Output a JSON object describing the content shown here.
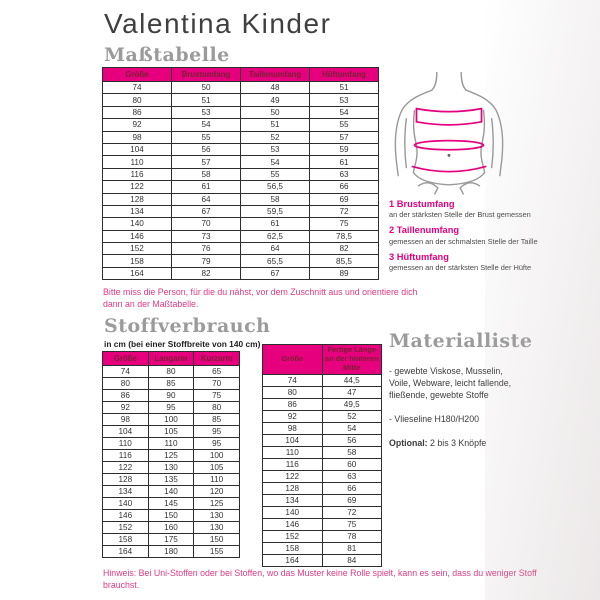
{
  "page": {
    "title": "Valentina Kinder",
    "accent_color": "#e6007e",
    "header_text_color": "#7b2034"
  },
  "mass_table": {
    "heading": "Maßtabelle",
    "columns": [
      "Größe",
      "Brustumfang",
      "Taillenumfang",
      "Hüftumfang"
    ],
    "rows": [
      [
        "74",
        "50",
        "48",
        "51"
      ],
      [
        "80",
        "51",
        "49",
        "53"
      ],
      [
        "86",
        "53",
        "50",
        "54"
      ],
      [
        "92",
        "54",
        "51",
        "55"
      ],
      [
        "98",
        "55",
        "52",
        "57"
      ],
      [
        "104",
        "56",
        "53",
        "59"
      ],
      [
        "110",
        "57",
        "54",
        "61"
      ],
      [
        "116",
        "58",
        "55",
        "63"
      ],
      [
        "122",
        "61",
        "56,5",
        "66"
      ],
      [
        "128",
        "64",
        "58",
        "69"
      ],
      [
        "134",
        "67",
        "59,5",
        "72"
      ],
      [
        "140",
        "70",
        "61",
        "75"
      ],
      [
        "146",
        "73",
        "62,5",
        "78,5"
      ],
      [
        "152",
        "76",
        "64",
        "82"
      ],
      [
        "158",
        "79",
        "65,5",
        "85,5"
      ],
      [
        "164",
        "82",
        "67",
        "89"
      ]
    ],
    "note": "Bitte miss die Person, für die du nähst, vor dem Zuschnitt aus und orientiere dich dann an der Maßtabelle."
  },
  "figure": {
    "name": "Körper-Messpunkte Illustration",
    "legend": [
      {
        "label": "1 Brustumfang",
        "desc": "an der stärksten Stelle der Brust gemessen"
      },
      {
        "label": "2 Taillenumfang",
        "desc": "gemessen an der schmalsten Stelle der Taille"
      },
      {
        "label": "3 Hüftumfang",
        "desc": "gemessen an der stärksten Stelle der Hüfte"
      }
    ]
  },
  "stoffverbrauch": {
    "heading": "Stoffverbrauch",
    "subtitle": "in cm (bei einer Stoffbreite von 140 cm)",
    "columns": [
      "Größe",
      "Langarm",
      "Kurzarm"
    ],
    "rows": [
      [
        "74",
        "80",
        "65"
      ],
      [
        "80",
        "85",
        "70"
      ],
      [
        "86",
        "90",
        "75"
      ],
      [
        "92",
        "95",
        "80"
      ],
      [
        "98",
        "100",
        "85"
      ],
      [
        "104",
        "105",
        "95"
      ],
      [
        "110",
        "110",
        "95"
      ],
      [
        "116",
        "125",
        "100"
      ],
      [
        "122",
        "130",
        "105"
      ],
      [
        "128",
        "135",
        "110"
      ],
      [
        "134",
        "140",
        "120"
      ],
      [
        "140",
        "145",
        "125"
      ],
      [
        "146",
        "150",
        "130"
      ],
      [
        "152",
        "160",
        "130"
      ],
      [
        "158",
        "175",
        "150"
      ],
      [
        "164",
        "180",
        "155"
      ]
    ]
  },
  "length_table": {
    "columns": [
      "Größe",
      "Fertige Länge an der hinteren Mitte"
    ],
    "rows": [
      [
        "74",
        "44,5"
      ],
      [
        "80",
        "47"
      ],
      [
        "86",
        "49,5"
      ],
      [
        "92",
        "52"
      ],
      [
        "98",
        "54"
      ],
      [
        "104",
        "56"
      ],
      [
        "110",
        "58"
      ],
      [
        "116",
        "60"
      ],
      [
        "122",
        "63"
      ],
      [
        "128",
        "66"
      ],
      [
        "134",
        "69"
      ],
      [
        "140",
        "72"
      ],
      [
        "146",
        "75"
      ],
      [
        "152",
        "78"
      ],
      [
        "158",
        "81"
      ],
      [
        "164",
        "84"
      ]
    ]
  },
  "materialliste": {
    "heading": "Materialliste",
    "items": [
      "- gewebte Viskose, Musselin, Voile, Webware, leicht fallende, fließende, gewebte Stoffe",
      "- Vlieseline H180/H200"
    ],
    "optional_label": "Optional:",
    "optional_text": " 2 bis 3 Knöpfe"
  },
  "footer_note": "Hinweis: Bei Uni-Stoffen oder bei Stoffen, wo das Muster keine Rolle spielt, kann es sein, dass du weniger Stoff brauchst."
}
